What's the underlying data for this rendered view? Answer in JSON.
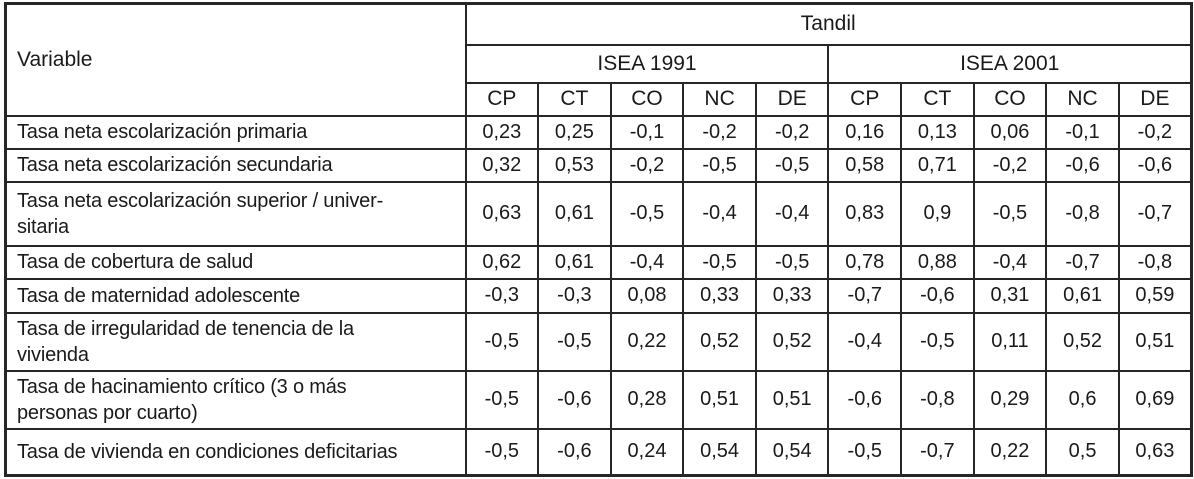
{
  "table": {
    "corner_header": "Variable",
    "city_header": "Tandil",
    "groups": [
      {
        "label": "ISEA 1991"
      },
      {
        "label": "ISEA 2001"
      }
    ],
    "columns": [
      "CP",
      "CT",
      "CO",
      "NC",
      "DE",
      "CP",
      "CT",
      "CO",
      "NC",
      "DE"
    ],
    "rows": [
      {
        "label": "Tasa neta escolarización primaria",
        "values": [
          "0,23",
          "0,25",
          "-0,1",
          "-0,2",
          "-0,2",
          "0,16",
          "0,13",
          "0,06",
          "-0,1",
          "-0,2"
        ]
      },
      {
        "label": "Tasa neta escolarización secundaria",
        "values": [
          "0,32",
          "0,53",
          "-0,2",
          "-0,5",
          "-0,5",
          "0,58",
          "0,71",
          "-0,2",
          "-0,6",
          "-0,6"
        ]
      },
      {
        "label": [
          "Tasa neta escolarización superior / univer-",
          "sitaria"
        ],
        "values": [
          "0,63",
          "0,61",
          "-0,5",
          "-0,4",
          "-0,4",
          "0,83",
          "0,9",
          "-0,5",
          "-0,8",
          "-0,7"
        ]
      },
      {
        "label": "Tasa de cobertura de salud",
        "values": [
          "0,62",
          "0,61",
          "-0,4",
          "-0,5",
          "-0,5",
          "0,78",
          "0,88",
          "-0,4",
          "-0,7",
          "-0,8"
        ]
      },
      {
        "label": "Tasa de maternidad adolescente",
        "values": [
          "-0,3",
          "-0,3",
          "0,08",
          "0,33",
          "0,33",
          "-0,7",
          "-0,6",
          "0,31",
          "0,61",
          "0,59"
        ]
      },
      {
        "label": [
          "Tasa de irregularidad de tenencia de la",
          "vivienda"
        ],
        "values": [
          "-0,5",
          "-0,5",
          "0,22",
          "0,52",
          "0,52",
          "-0,4",
          "-0,5",
          "0,11",
          "0,52",
          "0,51"
        ]
      },
      {
        "label": [
          "Tasa de hacinamiento crítico (3 o más",
          "personas por cuarto)"
        ],
        "values": [
          "-0,5",
          "-0,6",
          "0,28",
          "0,51",
          "0,51",
          "-0,6",
          "-0,8",
          "0,29",
          "0,6",
          "0,69"
        ]
      },
      {
        "label": "Tasa de vivienda en condiciones deficitarias",
        "values": [
          "-0,5",
          "-0,6",
          "0,24",
          "0,54",
          "0,54",
          "-0,5",
          "-0,7",
          "0,22",
          "0,5",
          "0,63"
        ]
      }
    ]
  },
  "colors": {
    "text": "#1a1a1a",
    "border": "#262626",
    "background": "#ffffff"
  }
}
